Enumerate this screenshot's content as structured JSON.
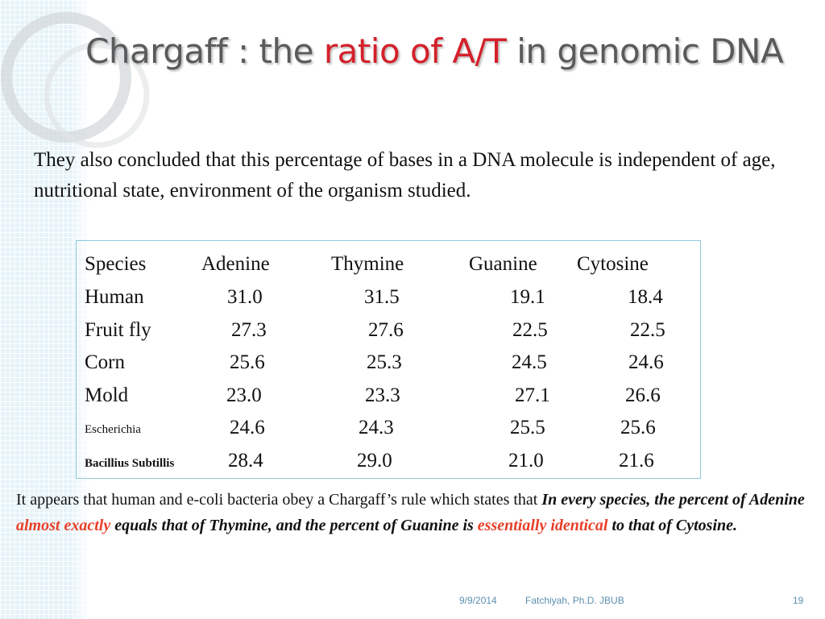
{
  "title": {
    "part1": "Chargaff : the ",
    "part2": "ratio of A/T",
    "part3": " in genomic DNA"
  },
  "intro": "They also concluded that this percentage of bases in a DNA molecule is independent of age, nutritional state, environment of the organism studied.",
  "table": {
    "headers": [
      "Species",
      "Adenine",
      "Thymine",
      "Guanine",
      "Cytosine"
    ],
    "rows": [
      [
        "Human",
        "31.0",
        "31.5",
        "19.1",
        "18.4"
      ],
      [
        "Fruit fly",
        "27.3",
        "27.6",
        "22.5",
        "22.5"
      ],
      [
        "Corn",
        "25.6",
        "25.3",
        "24.5",
        "24.6"
      ],
      [
        "Mold",
        "23.0",
        "23.3",
        "27.1",
        "26.6"
      ],
      [
        "Escherichia",
        "24.6",
        "24.3",
        "25.5",
        "25.6"
      ],
      [
        "Bacillius Subtillis",
        "28.4",
        "29.0",
        "21.0",
        "21.6"
      ]
    ]
  },
  "conclusion": {
    "part1": "It appears that human and e-coli bacteria obey a Chargaff’s rule which states that ",
    "part2": "In every species, the percent of Adenine ",
    "part3": "almost exactly",
    "part4": " equals that of Thymine, and the percent of Guanine is ",
    "part5": "essentially identical",
    "part6": " to that of Cytosine."
  },
  "footer": {
    "date": "9/9/2014",
    "author": "Fatchiyah, Ph.D. JBUB",
    "page": "19"
  },
  "colors": {
    "accent": "#d4202a",
    "emphasis": "#e8402a",
    "grid": "#e6f3f8",
    "footer": "#5b8fb0"
  }
}
